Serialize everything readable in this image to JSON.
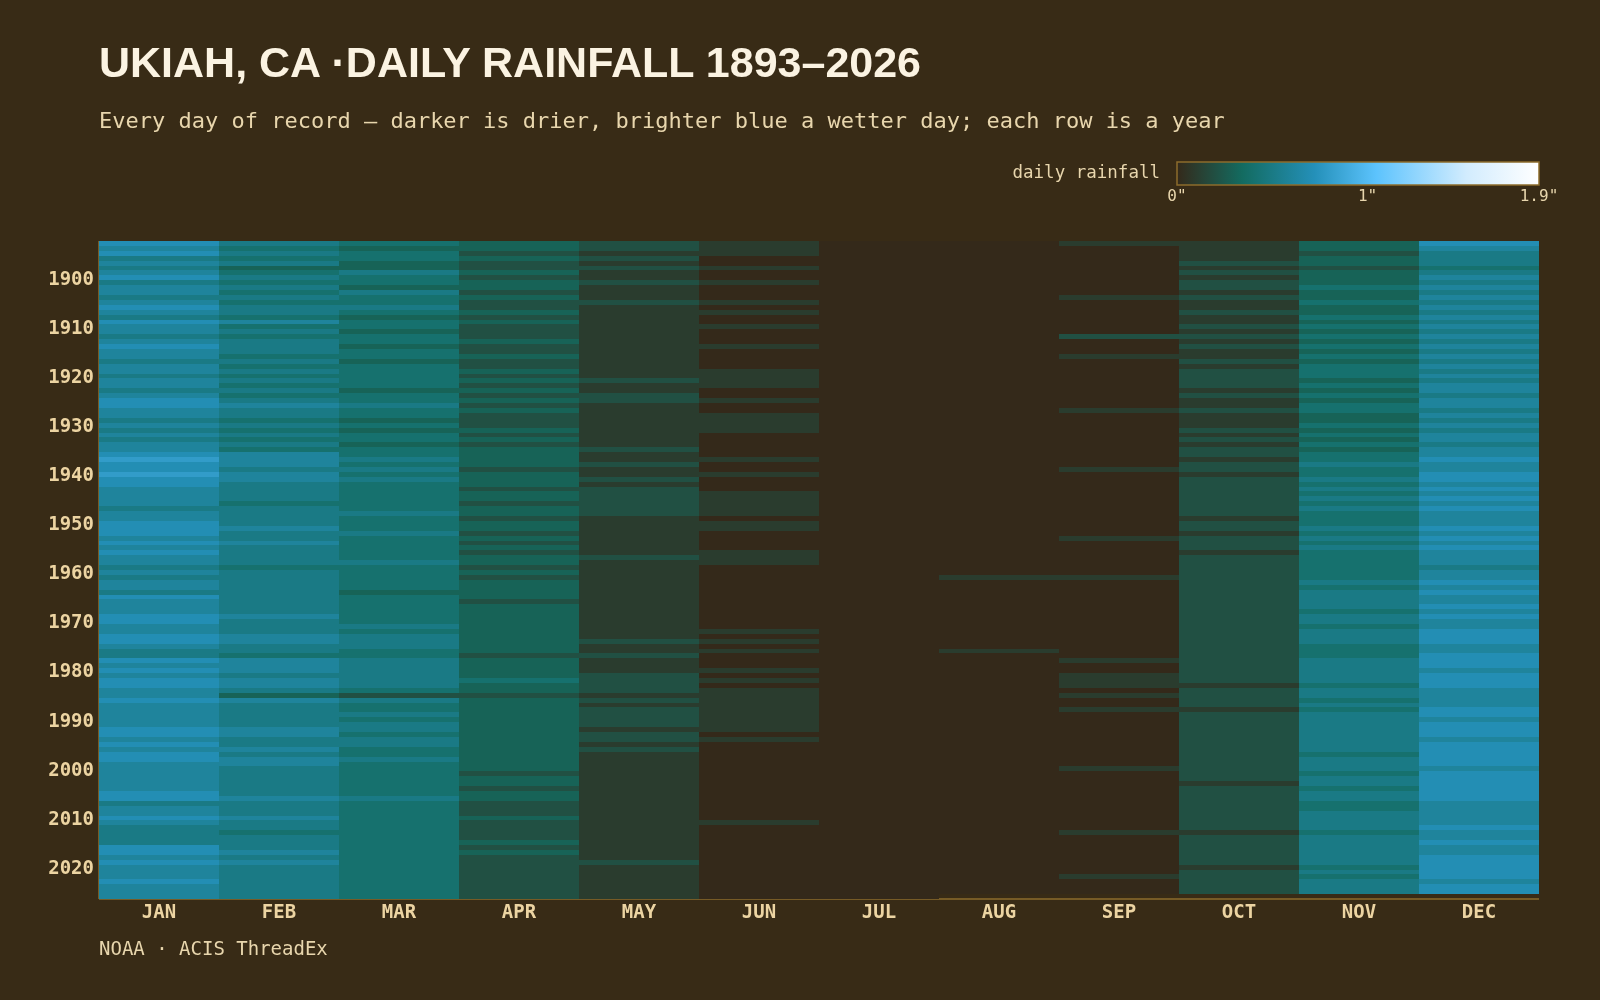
{
  "chart_data": {
    "type": "heatmap",
    "title": "UKIAH, CA ·DAILY RAINFALL 1893–2026",
    "subtitle": "Every day of record — darker is drier, brighter blue a wetter day; each row is a year",
    "clabel": "daily rainfall",
    "annotations": [
      "NOAA · ACIS ThreadEx"
    ],
    "categories": [
      "JAN",
      "FEB",
      "MAR",
      "APR",
      "MAY",
      "JUN",
      "JUL",
      "AUG",
      "SEP",
      "OCT",
      "NOV",
      "DEC"
    ],
    "y_categories": [
      null,
      null,
      null,
      null,
      null,
      null,
      null,
      "1900",
      null,
      null,
      null,
      null,
      null,
      null,
      null,
      null,
      null,
      "1910",
      null,
      null,
      null,
      null,
      null,
      null,
      null,
      null,
      null,
      "1920",
      null,
      null,
      null,
      null,
      null,
      null,
      null,
      null,
      null,
      "1930",
      null,
      null,
      null,
      null,
      null,
      null,
      null,
      null,
      null,
      "1940",
      null,
      null,
      null,
      null,
      null,
      null,
      null,
      null,
      null,
      "1950",
      null,
      null,
      null,
      null,
      null,
      null,
      null,
      null,
      null,
      "1960",
      null,
      null,
      null,
      null,
      null,
      null,
      null,
      null,
      null,
      "1970",
      null,
      null,
      null,
      null,
      null,
      null,
      null,
      null,
      null,
      "1980",
      null,
      null,
      null,
      null,
      null,
      null,
      null,
      null,
      null,
      "1990",
      null,
      null,
      null,
      null,
      null,
      null,
      null,
      null,
      null,
      "2000",
      null,
      null,
      null,
      null,
      null,
      null,
      null,
      null,
      null,
      "2010",
      null,
      null,
      null,
      null,
      null,
      null,
      null,
      null,
      null,
      "2020",
      null,
      null,
      null,
      null,
      null,
      null
    ],
    "clim": [
      0,
      1.9
    ],
    "cticks": [
      {
        "value": 0,
        "label": "0\""
      },
      {
        "value": 1,
        "label": "1\""
      },
      {
        "value": 1.9,
        "label": "1.9\""
      }
    ],
    "cells": [
      [
        0.7,
        0.5,
        0.4,
        0.3,
        0.2,
        0.1,
        0,
        0,
        0.1,
        0.1,
        0.3,
        0.7
      ],
      [
        0.6,
        0.4,
        0.3,
        0.3,
        0.2,
        0.1,
        0,
        0,
        0,
        0.1,
        0.3,
        0.6
      ],
      [
        0.7,
        0.5,
        0.4,
        0.2,
        0.1,
        0.1,
        0,
        0,
        0,
        0.1,
        0.2,
        0.5
      ],
      [
        0.5,
        0.4,
        0.4,
        0.3,
        0.2,
        0,
        0,
        0,
        0,
        0.1,
        0.3,
        0.5
      ],
      [
        0.6,
        0.5,
        0.3,
        0.2,
        0.1,
        0,
        0,
        0,
        0,
        0.2,
        0.3,
        0.5
      ],
      [
        0.5,
        0.3,
        0.3,
        0.2,
        0.2,
        0.1,
        0,
        0,
        0,
        0.1,
        0.2,
        0.4
      ],
      [
        0.6,
        0.4,
        0.5,
        0.3,
        0.1,
        0,
        0,
        0,
        0,
        0.2,
        0.3,
        0.5
      ],
      [
        0.7,
        0.5,
        0.4,
        0.2,
        0.1,
        0,
        0,
        0,
        0,
        0.1,
        0.3,
        0.6
      ],
      [
        0.5,
        0.4,
        0.4,
        0.3,
        0.2,
        0.1,
        0,
        0,
        0,
        0.2,
        0.3,
        0.5
      ],
      [
        0.6,
        0.5,
        0.3,
        0.3,
        0.1,
        0,
        0,
        0,
        0,
        0.2,
        0.4,
        0.6
      ],
      [
        0.6,
        0.4,
        0.5,
        0.2,
        0.1,
        0,
        0,
        0,
        0,
        0.1,
        0.3,
        0.5
      ],
      [
        0.5,
        0.5,
        0.4,
        0.3,
        0.1,
        0,
        0,
        0,
        0.1,
        0.2,
        0.3,
        0.6
      ],
      [
        0.6,
        0.4,
        0.4,
        0.2,
        0.2,
        0.1,
        0,
        0,
        0,
        0.1,
        0.4,
        0.5
      ],
      [
        0.7,
        0.5,
        0.5,
        0.2,
        0.1,
        0,
        0,
        0,
        0,
        0.1,
        0.3,
        0.6
      ],
      [
        0.6,
        0.5,
        0.4,
        0.3,
        0.1,
        0.1,
        0,
        0,
        0,
        0.2,
        0.3,
        0.5
      ],
      [
        0.5,
        0.4,
        0.3,
        0.2,
        0.1,
        0,
        0,
        0,
        0,
        0.1,
        0.4,
        0.6
      ],
      [
        0.7,
        0.6,
        0.4,
        0.3,
        0.1,
        0,
        0,
        0,
        0,
        0.1,
        0.3,
        0.5
      ],
      [
        0.6,
        0.4,
        0.4,
        0.2,
        0.1,
        0.1,
        0,
        0,
        0,
        0.2,
        0.4,
        0.6
      ],
      [
        0.6,
        0.5,
        0.3,
        0.2,
        0.1,
        0,
        0,
        0,
        0,
        0.1,
        0.3,
        0.5
      ],
      [
        0.5,
        0.4,
        0.4,
        0.2,
        0.1,
        0,
        0,
        0,
        0.2,
        0.2,
        0.4,
        0.6
      ],
      [
        0.6,
        0.5,
        0.4,
        0.3,
        0.1,
        0,
        0,
        0,
        0,
        0.1,
        0.3,
        0.5
      ],
      [
        0.7,
        0.5,
        0.3,
        0.2,
        0.1,
        0.1,
        0,
        0,
        0,
        0.2,
        0.4,
        0.6
      ],
      [
        0.6,
        0.5,
        0.4,
        0.2,
        0.1,
        0,
        0,
        0,
        0,
        0.1,
        0.3,
        0.5
      ],
      [
        0.6,
        0.4,
        0.4,
        0.3,
        0.1,
        0,
        0,
        0,
        0.1,
        0.1,
        0.4,
        0.6
      ],
      [
        0.5,
        0.5,
        0.3,
        0.2,
        0.1,
        0,
        0,
        0,
        0,
        0.2,
        0.3,
        0.5
      ],
      [
        0.6,
        0.4,
        0.4,
        0.2,
        0.1,
        0,
        0,
        0,
        0,
        0.1,
        0.4,
        0.6
      ],
      [
        0.6,
        0.5,
        0.4,
        0.3,
        0.1,
        0.1,
        0,
        0,
        0,
        0.2,
        0.4,
        0.5
      ],
      [
        0.5,
        0.4,
        0.4,
        0.2,
        0.1,
        0.1,
        0,
        0,
        0,
        0.2,
        0.4,
        0.6
      ],
      [
        0.6,
        0.5,
        0.4,
        0.3,
        0.2,
        0.1,
        0,
        0,
        0,
        0.2,
        0.3,
        0.5
      ],
      [
        0.6,
        0.4,
        0.4,
        0.2,
        0.1,
        0.1,
        0,
        0,
        0,
        0.2,
        0.4,
        0.6
      ],
      [
        0.5,
        0.5,
        0.3,
        0.3,
        0.1,
        0,
        0,
        0,
        0,
        0.1,
        0.3,
        0.6
      ],
      [
        0.6,
        0.4,
        0.4,
        0.2,
        0.2,
        0,
        0,
        0,
        0,
        0.2,
        0.4,
        0.5
      ],
      [
        0.7,
        0.5,
        0.4,
        0.3,
        0.2,
        0.1,
        0,
        0,
        0,
        0.1,
        0.3,
        0.6
      ],
      [
        0.7,
        0.6,
        0.5,
        0.2,
        0.1,
        0,
        0,
        0,
        0,
        0.1,
        0.4,
        0.6
      ],
      [
        0.6,
        0.5,
        0.4,
        0.3,
        0.1,
        0,
        0,
        0,
        0.1,
        0.2,
        0.4,
        0.5
      ],
      [
        0.6,
        0.5,
        0.4,
        0.2,
        0.1,
        0.1,
        0,
        0,
        0,
        0.1,
        0.3,
        0.6
      ],
      [
        0.5,
        0.4,
        0.3,
        0.2,
        0.1,
        0.1,
        0,
        0,
        0,
        0.1,
        0.3,
        0.5
      ],
      [
        0.6,
        0.5,
        0.4,
        0.2,
        0.1,
        0.1,
        0,
        0,
        0,
        0.1,
        0.4,
        0.6
      ],
      [
        0.5,
        0.4,
        0.3,
        0.3,
        0.1,
        0.1,
        0,
        0,
        0,
        0.2,
        0.3,
        0.5
      ],
      [
        0.6,
        0.5,
        0.4,
        0.2,
        0.1,
        0,
        0,
        0,
        0,
        0.1,
        0.4,
        0.6
      ],
      [
        0.5,
        0.4,
        0.4,
        0.3,
        0.1,
        0,
        0,
        0,
        0,
        0.2,
        0.3,
        0.6
      ],
      [
        0.6,
        0.5,
        0.3,
        0.2,
        0.1,
        0,
        0,
        0,
        0,
        0.1,
        0.4,
        0.5
      ],
      [
        0.6,
        0.4,
        0.4,
        0.3,
        0.2,
        0,
        0,
        0,
        0,
        0.2,
        0.3,
        0.6
      ],
      [
        0.7,
        0.6,
        0.4,
        0.3,
        0.1,
        0,
        0,
        0,
        0,
        0.2,
        0.4,
        0.6
      ],
      [
        0.8,
        0.6,
        0.5,
        0.3,
        0.1,
        0.1,
        0,
        0,
        0,
        0.1,
        0.4,
        0.7
      ],
      [
        0.7,
        0.6,
        0.4,
        0.3,
        0.2,
        0,
        0,
        0,
        0,
        0.2,
        0.5,
        0.6
      ],
      [
        0.7,
        0.5,
        0.5,
        0.2,
        0.1,
        0,
        0,
        0,
        0.1,
        0.2,
        0.4,
        0.6
      ],
      [
        0.8,
        0.6,
        0.4,
        0.3,
        0.1,
        0.1,
        0,
        0,
        0,
        0.1,
        0.4,
        0.7
      ],
      [
        0.7,
        0.6,
        0.5,
        0.3,
        0.2,
        0,
        0,
        0,
        0,
        0.2,
        0.5,
        0.7
      ],
      [
        0.7,
        0.5,
        0.4,
        0.3,
        0.1,
        0,
        0,
        0,
        0,
        0.2,
        0.4,
        0.6
      ],
      [
        0.6,
        0.5,
        0.4,
        0.2,
        0.2,
        0,
        0,
        0,
        0,
        0.2,
        0.5,
        0.7
      ],
      [
        0.6,
        0.5,
        0.4,
        0.3,
        0.2,
        0.1,
        0,
        0,
        0,
        0.2,
        0.4,
        0.6
      ],
      [
        0.6,
        0.5,
        0.4,
        0.3,
        0.2,
        0.1,
        0,
        0,
        0,
        0.2,
        0.5,
        0.7
      ],
      [
        0.6,
        0.4,
        0.4,
        0.2,
        0.2,
        0.1,
        0,
        0,
        0,
        0.2,
        0.4,
        0.6
      ],
      [
        0.5,
        0.5,
        0.4,
        0.3,
        0.2,
        0.1,
        0,
        0,
        0,
        0.2,
        0.5,
        0.7
      ],
      [
        0.6,
        0.5,
        0.5,
        0.3,
        0.2,
        0.1,
        0,
        0,
        0,
        0.2,
        0.4,
        0.6
      ],
      [
        0.6,
        0.5,
        0.4,
        0.2,
        0.1,
        0,
        0,
        0,
        0,
        0.1,
        0.4,
        0.6
      ],
      [
        0.7,
        0.5,
        0.4,
        0.3,
        0.1,
        0.1,
        0,
        0,
        0,
        0.2,
        0.4,
        0.6
      ],
      [
        0.7,
        0.6,
        0.4,
        0.3,
        0.1,
        0.1,
        0,
        0,
        0,
        0.2,
        0.5,
        0.7
      ],
      [
        0.7,
        0.5,
        0.5,
        0.2,
        0.1,
        0,
        0,
        0,
        0,
        0.1,
        0.4,
        0.6
      ],
      [
        0.6,
        0.5,
        0.4,
        0.3,
        0.1,
        0,
        0,
        0,
        0.1,
        0.2,
        0.5,
        0.7
      ],
      [
        0.7,
        0.6,
        0.4,
        0.2,
        0.1,
        0,
        0,
        0,
        0,
        0.2,
        0.4,
        0.6
      ],
      [
        0.6,
        0.5,
        0.4,
        0.3,
        0.1,
        0,
        0,
        0,
        0,
        0.2,
        0.5,
        0.7
      ],
      [
        0.7,
        0.5,
        0.4,
        0.2,
        0.1,
        0.1,
        0,
        0,
        0,
        0.1,
        0.4,
        0.6
      ],
      [
        0.6,
        0.5,
        0.4,
        0.3,
        0.2,
        0.1,
        0,
        0,
        0,
        0.2,
        0.4,
        0.6
      ],
      [
        0.6,
        0.5,
        0.5,
        0.3,
        0.1,
        0.1,
        0,
        0,
        0,
        0.2,
        0.4,
        0.6
      ],
      [
        0.5,
        0.4,
        0.4,
        0.2,
        0.1,
        0,
        0,
        0,
        0,
        0.2,
        0.4,
        0.5
      ],
      [
        0.6,
        0.5,
        0.4,
        0.3,
        0.1,
        0,
        0,
        0,
        0,
        0.2,
        0.4,
        0.6
      ],
      [
        0.5,
        0.5,
        0.4,
        0.2,
        0.1,
        0,
        0,
        0.1,
        0.1,
        0.2,
        0.4,
        0.6
      ],
      [
        0.6,
        0.5,
        0.4,
        0.3,
        0.1,
        0,
        0,
        0,
        0,
        0.2,
        0.5,
        0.7
      ],
      [
        0.6,
        0.5,
        0.4,
        0.3,
        0.1,
        0,
        0,
        0,
        0,
        0.2,
        0.4,
        0.6
      ],
      [
        0.5,
        0.5,
        0.3,
        0.3,
        0.1,
        0,
        0,
        0,
        0,
        0.2,
        0.5,
        0.7
      ],
      [
        0.7,
        0.5,
        0.4,
        0.3,
        0.1,
        0,
        0,
        0,
        0,
        0.2,
        0.5,
        0.6
      ],
      [
        0.6,
        0.5,
        0.4,
        0.2,
        0.1,
        0,
        0,
        0,
        0,
        0.2,
        0.5,
        0.6
      ],
      [
        0.6,
        0.5,
        0.4,
        0.3,
        0.1,
        0,
        0,
        0,
        0,
        0.2,
        0.5,
        0.7
      ],
      [
        0.6,
        0.5,
        0.4,
        0.3,
        0.1,
        0,
        0,
        0,
        0,
        0.2,
        0.4,
        0.6
      ],
      [
        0.7,
        0.6,
        0.4,
        0.3,
        0.1,
        0,
        0,
        0,
        0,
        0.2,
        0.5,
        0.7
      ],
      [
        0.7,
        0.5,
        0.4,
        0.3,
        0.1,
        0,
        0,
        0,
        0,
        0.2,
        0.5,
        0.6
      ],
      [
        0.6,
        0.5,
        0.5,
        0.3,
        0.1,
        0,
        0,
        0,
        0,
        0.2,
        0.4,
        0.6
      ],
      [
        0.6,
        0.5,
        0.4,
        0.3,
        0.1,
        0.1,
        0,
        0,
        0,
        0.2,
        0.5,
        0.7
      ],
      [
        0.7,
        0.6,
        0.5,
        0.3,
        0.1,
        0,
        0,
        0,
        0,
        0.2,
        0.5,
        0.7
      ],
      [
        0.7,
        0.6,
        0.5,
        0.3,
        0.2,
        0.1,
        0,
        0,
        0,
        0.2,
        0.5,
        0.7
      ],
      [
        0.6,
        0.5,
        0.5,
        0.3,
        0.1,
        0,
        0,
        0,
        0,
        0.2,
        0.4,
        0.6
      ],
      [
        0.5,
        0.5,
        0.4,
        0.3,
        0.1,
        0.1,
        0,
        0.1,
        0,
        0.2,
        0.4,
        0.6
      ],
      [
        0.5,
        0.4,
        0.4,
        0.2,
        0.2,
        0,
        0,
        0,
        0,
        0.2,
        0.4,
        0.7
      ],
      [
        0.7,
        0.6,
        0.5,
        0.3,
        0.1,
        0,
        0,
        0,
        0.1,
        0.2,
        0.5,
        0.7
      ],
      [
        0.6,
        0.6,
        0.5,
        0.3,
        0.1,
        0,
        0,
        0,
        0,
        0.2,
        0.5,
        0.7
      ],
      [
        0.7,
        0.6,
        0.5,
        0.3,
        0.1,
        0.1,
        0,
        0,
        0,
        0.2,
        0.5,
        0.6
      ],
      [
        0.6,
        0.5,
        0.5,
        0.3,
        0.2,
        0,
        0,
        0,
        0.1,
        0.2,
        0.5,
        0.7
      ],
      [
        0.7,
        0.6,
        0.5,
        0.4,
        0.2,
        0.1,
        0,
        0,
        0.1,
        0.2,
        0.5,
        0.7
      ],
      [
        0.7,
        0.6,
        0.5,
        0.3,
        0.2,
        0,
        0,
        0,
        0.1,
        0.1,
        0.4,
        0.7
      ],
      [
        0.6,
        0.5,
        0.4,
        0.3,
        0.2,
        0.1,
        0,
        0,
        0,
        0.2,
        0.5,
        0.6
      ],
      [
        0.6,
        0.3,
        0.2,
        0.2,
        0.1,
        0.1,
        0,
        0,
        0.1,
        0.2,
        0.5,
        0.6
      ],
      [
        0.7,
        0.6,
        0.5,
        0.3,
        0.2,
        0.1,
        0,
        0,
        0,
        0.2,
        0.4,
        0.6
      ],
      [
        0.6,
        0.5,
        0.4,
        0.3,
        0.1,
        0.1,
        0,
        0,
        0,
        0.2,
        0.5,
        0.6
      ],
      [
        0.6,
        0.5,
        0.4,
        0.3,
        0.2,
        0.1,
        0,
        0,
        0.1,
        0.1,
        0.4,
        0.7
      ],
      [
        0.6,
        0.5,
        0.5,
        0.3,
        0.2,
        0.1,
        0,
        0,
        0,
        0.2,
        0.5,
        0.7
      ],
      [
        0.6,
        0.5,
        0.4,
        0.3,
        0.2,
        0.1,
        0,
        0,
        0,
        0.2,
        0.5,
        0.6
      ],
      [
        0.6,
        0.5,
        0.5,
        0.3,
        0.2,
        0.1,
        0,
        0,
        0,
        0.2,
        0.5,
        0.7
      ],
      [
        0.7,
        0.6,
        0.5,
        0.3,
        0.1,
        0.1,
        0,
        0,
        0,
        0.2,
        0.5,
        0.7
      ],
      [
        0.7,
        0.6,
        0.4,
        0.3,
        0.2,
        0,
        0,
        0,
        0,
        0.2,
        0.5,
        0.7
      ],
      [
        0.6,
        0.5,
        0.5,
        0.3,
        0.2,
        0.1,
        0,
        0,
        0,
        0.2,
        0.5,
        0.6
      ],
      [
        0.7,
        0.5,
        0.5,
        0.3,
        0.1,
        0,
        0,
        0,
        0,
        0.2,
        0.5,
        0.7
      ],
      [
        0.6,
        0.6,
        0.4,
        0.3,
        0.2,
        0,
        0,
        0,
        0,
        0.2,
        0.5,
        0.7
      ],
      [
        0.7,
        0.5,
        0.4,
        0.3,
        0.1,
        0,
        0,
        0,
        0,
        0.2,
        0.4,
        0.7
      ],
      [
        0.7,
        0.6,
        0.5,
        0.3,
        0.1,
        0,
        0,
        0,
        0,
        0.2,
        0.5,
        0.7
      ],
      [
        0.6,
        0.6,
        0.4,
        0.3,
        0.1,
        0,
        0,
        0,
        0,
        0.2,
        0.5,
        0.7
      ],
      [
        0.6,
        0.5,
        0.4,
        0.3,
        0.1,
        0,
        0,
        0,
        0.1,
        0.2,
        0.5,
        0.6
      ],
      [
        0.6,
        0.5,
        0.4,
        0.2,
        0.1,
        0,
        0,
        0,
        0,
        0.2,
        0.4,
        0.7
      ],
      [
        0.6,
        0.5,
        0.4,
        0.3,
        0.1,
        0,
        0,
        0,
        0,
        0.2,
        0.5,
        0.7
      ],
      [
        0.6,
        0.5,
        0.4,
        0.3,
        0.1,
        0,
        0,
        0,
        0,
        0.1,
        0.5,
        0.7
      ],
      [
        0.6,
        0.5,
        0.4,
        0.2,
        0.1,
        0,
        0,
        0,
        0,
        0.2,
        0.4,
        0.7
      ],
      [
        0.7,
        0.5,
        0.4,
        0.3,
        0.1,
        0,
        0,
        0,
        0,
        0.2,
        0.5,
        0.7
      ],
      [
        0.7,
        0.6,
        0.5,
        0.3,
        0.1,
        0,
        0,
        0,
        0,
        0.2,
        0.5,
        0.7
      ],
      [
        0.5,
        0.5,
        0.4,
        0.2,
        0.1,
        0,
        0,
        0,
        0,
        0.2,
        0.4,
        0.6
      ],
      [
        0.6,
        0.5,
        0.4,
        0.2,
        0.1,
        0,
        0,
        0,
        0,
        0.2,
        0.4,
        0.6
      ],
      [
        0.6,
        0.5,
        0.4,
        0.2,
        0.1,
        0,
        0,
        0,
        0,
        0.2,
        0.5,
        0.6
      ],
      [
        0.7,
        0.6,
        0.4,
        0.3,
        0.1,
        0,
        0,
        0,
        0,
        0.2,
        0.5,
        0.6
      ],
      [
        0.6,
        0.5,
        0.4,
        0.2,
        0.1,
        0.1,
        0,
        0,
        0,
        0.2,
        0.5,
        0.6
      ],
      [
        0.5,
        0.5,
        0.4,
        0.2,
        0.1,
        0,
        0,
        0,
        0,
        0.2,
        0.5,
        0.7
      ],
      [
        0.5,
        0.4,
        0.4,
        0.2,
        0.1,
        0,
        0,
        0,
        0.1,
        0.1,
        0.4,
        0.6
      ],
      [
        0.5,
        0.5,
        0.4,
        0.2,
        0.1,
        0,
        0,
        0,
        0,
        0.2,
        0.5,
        0.6
      ],
      [
        0.5,
        0.5,
        0.4,
        0.3,
        0.1,
        0,
        0,
        0,
        0,
        0.2,
        0.5,
        0.7
      ],
      [
        0.7,
        0.5,
        0.4,
        0.2,
        0.1,
        0,
        0,
        0,
        0,
        0.2,
        0.5,
        0.6
      ],
      [
        0.7,
        0.6,
        0.4,
        0.3,
        0.1,
        0,
        0,
        0,
        0,
        0.2,
        0.5,
        0.6
      ],
      [
        0.6,
        0.5,
        0.4,
        0.2,
        0.1,
        0,
        0,
        0,
        0,
        0.2,
        0.5,
        0.7
      ],
      [
        0.7,
        0.6,
        0.4,
        0.2,
        0.2,
        0,
        0,
        0,
        0,
        0.2,
        0.5,
        0.7
      ],
      [
        0.6,
        0.5,
        0.4,
        0.2,
        0.1,
        0,
        0,
        0,
        0,
        0.1,
        0.4,
        0.7
      ],
      [
        0.6,
        0.5,
        0.4,
        0.2,
        0.1,
        0,
        0,
        0,
        0,
        0.2,
        0.5,
        0.7
      ],
      [
        0.6,
        0.5,
        0.4,
        0.2,
        0.1,
        0,
        0,
        0,
        0.1,
        0.2,
        0.4,
        0.7
      ],
      [
        0.7,
        0.5,
        0.4,
        0.2,
        0.1,
        0,
        0,
        0,
        0,
        0.2,
        0.5,
        0.6
      ],
      [
        0.6,
        0.5,
        0.4,
        0.2,
        0.1,
        0,
        0,
        0,
        0,
        0.2,
        0.5,
        0.7
      ],
      [
        0.6,
        0.5,
        0.4,
        0.2,
        0.1,
        0,
        0,
        0,
        0,
        0.2,
        0.5,
        0.7
      ],
      [
        0.6,
        0.5,
        0.4,
        0.2,
        0.1,
        0,
        0,
        null,
        null,
        null,
        null,
        null
      ]
    ]
  }
}
